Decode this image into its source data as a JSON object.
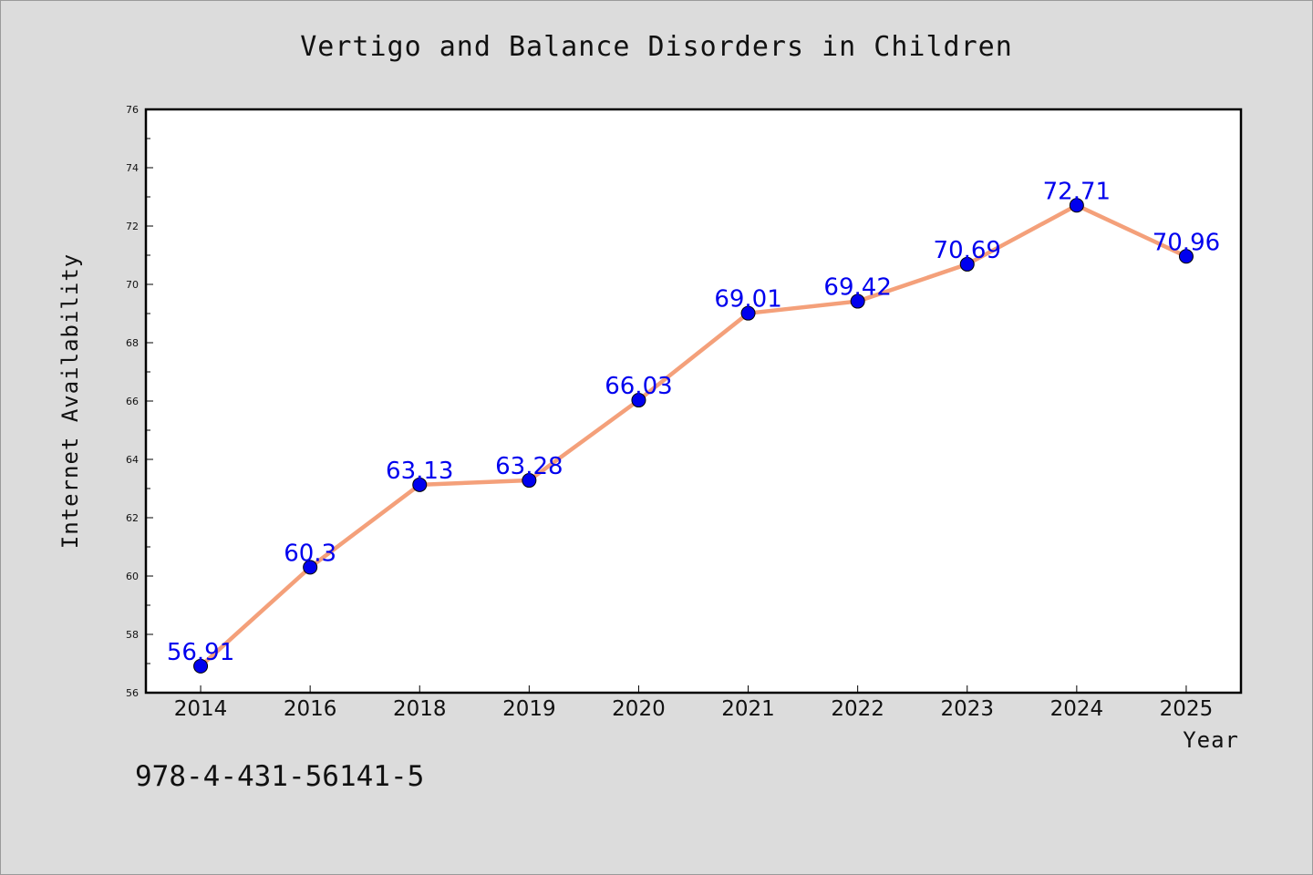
{
  "chart_data": {
    "type": "line",
    "title": "Vertigo and Balance Disorders in Children",
    "xlabel": "Year",
    "ylabel": "Internet Availability",
    "categories": [
      "2014",
      "2016",
      "2018",
      "2019",
      "2020",
      "2021",
      "2022",
      "2023",
      "2024",
      "2025"
    ],
    "values": [
      56.91,
      60.3,
      63.13,
      63.28,
      66.03,
      69.01,
      69.42,
      70.69,
      72.71,
      70.96
    ],
    "data_labels": [
      "56.91",
      "60.3",
      "63.13",
      "63.28",
      "66.03",
      "69.01",
      "69.42",
      "70.69",
      "72.71",
      "70.96"
    ],
    "ylim": [
      56,
      76
    ],
    "yticks": [
      56,
      58,
      60,
      62,
      64,
      66,
      68,
      70,
      72,
      74,
      76
    ],
    "grid": false,
    "colors": {
      "line": "#f4a07a",
      "marker": "#0000ee",
      "label": "#0000ee",
      "background": "#dcdcdc",
      "plot": "#ffffff"
    }
  },
  "footer": {
    "isbn": "978-4-431-56141-5"
  }
}
